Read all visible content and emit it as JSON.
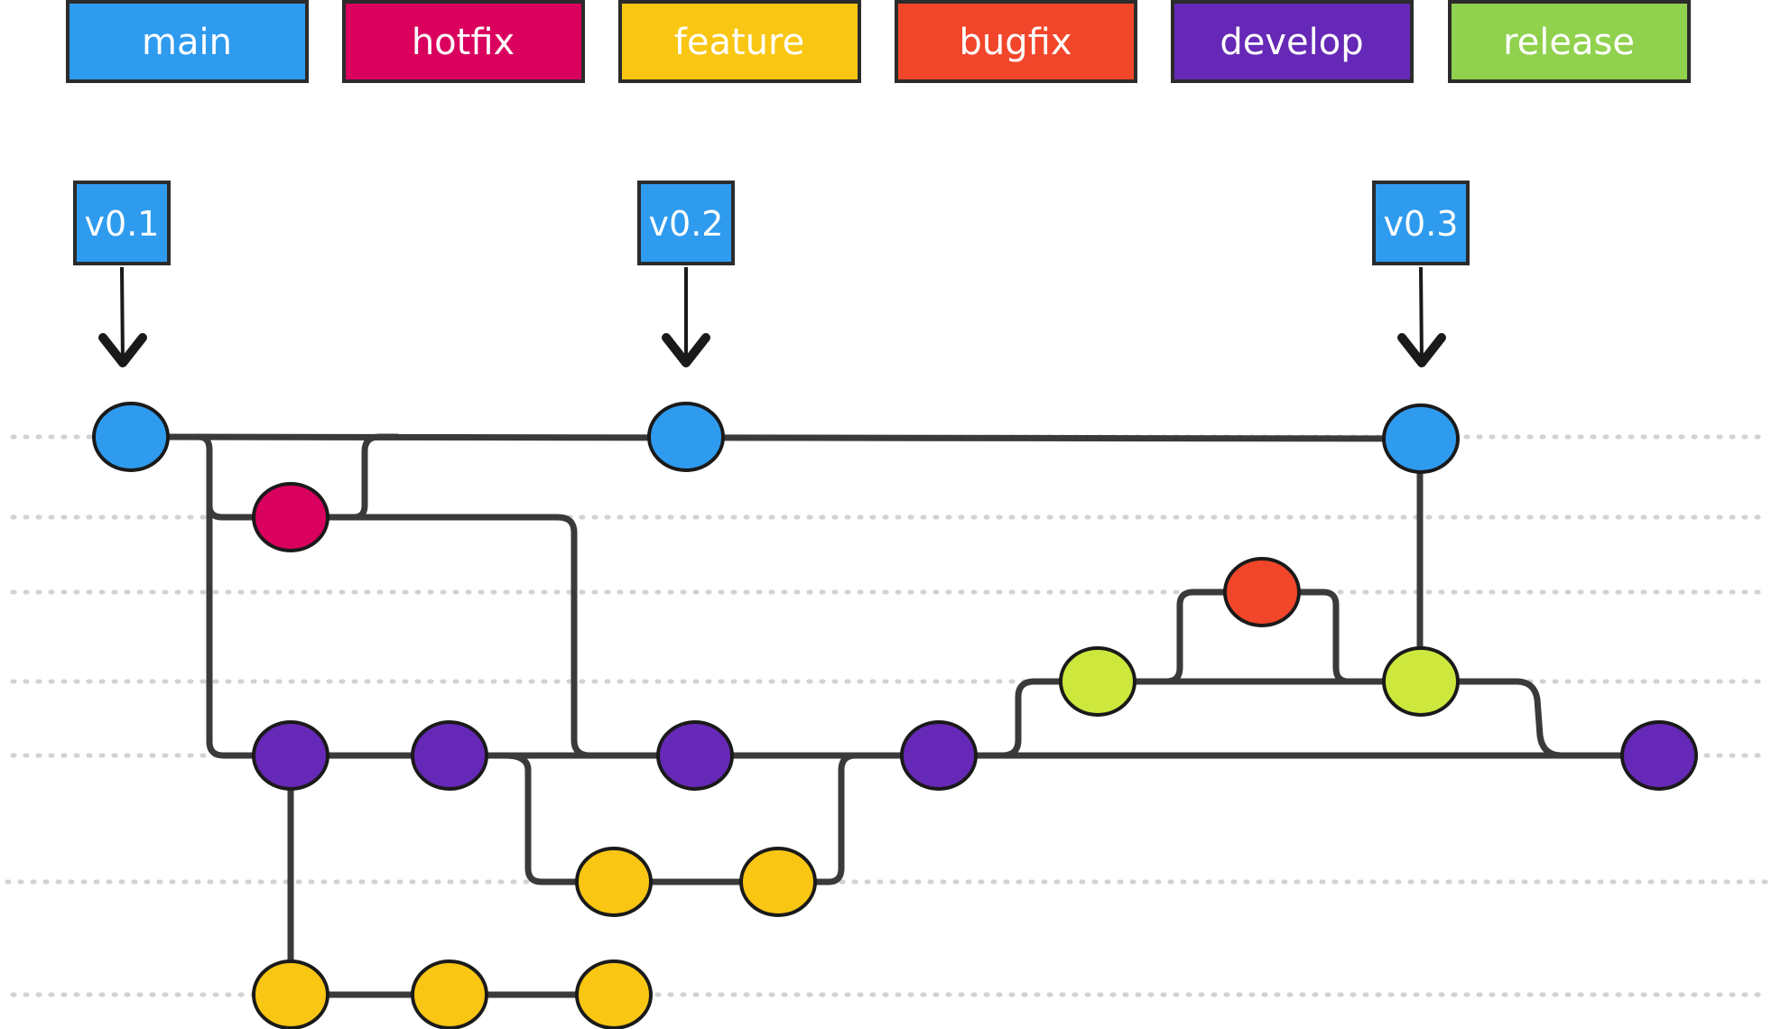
{
  "legend": [
    {
      "label": "main",
      "color": "#2e9bef"
    },
    {
      "label": "hotfix",
      "color": "#d9005e"
    },
    {
      "label": "feature",
      "color": "#f9c613"
    },
    {
      "label": "bugfix",
      "color": "#f2462a"
    },
    {
      "label": "develop",
      "color": "#6628b6"
    },
    {
      "label": "release",
      "color": "#90d14e"
    }
  ],
  "tags": [
    "v0.1",
    "v0.2",
    "v0.3"
  ],
  "colors": {
    "main": "#2e9bef",
    "hotfix": "#d9005e",
    "feature": "#f9c613",
    "bugfix": "#f2462a",
    "develop": "#6628b6",
    "release_commit": "#cde73d",
    "line": "#3a3a3a",
    "lane": "#d2d2d2"
  },
  "commits": [
    {
      "id": "m1",
      "branch": "main"
    },
    {
      "id": "m2",
      "branch": "main"
    },
    {
      "id": "m3",
      "branch": "main"
    },
    {
      "id": "h1",
      "branch": "hotfix"
    },
    {
      "id": "b1",
      "branch": "bugfix"
    },
    {
      "id": "r1",
      "branch": "release"
    },
    {
      "id": "r2",
      "branch": "release"
    },
    {
      "id": "d1",
      "branch": "develop"
    },
    {
      "id": "d2",
      "branch": "develop"
    },
    {
      "id": "d3",
      "branch": "develop"
    },
    {
      "id": "d4",
      "branch": "develop"
    },
    {
      "id": "d5",
      "branch": "develop"
    },
    {
      "id": "f1",
      "branch": "feature"
    },
    {
      "id": "f2",
      "branch": "feature"
    },
    {
      "id": "f3",
      "branch": "feature"
    },
    {
      "id": "f4",
      "branch": "feature"
    },
    {
      "id": "f5",
      "branch": "feature"
    }
  ]
}
